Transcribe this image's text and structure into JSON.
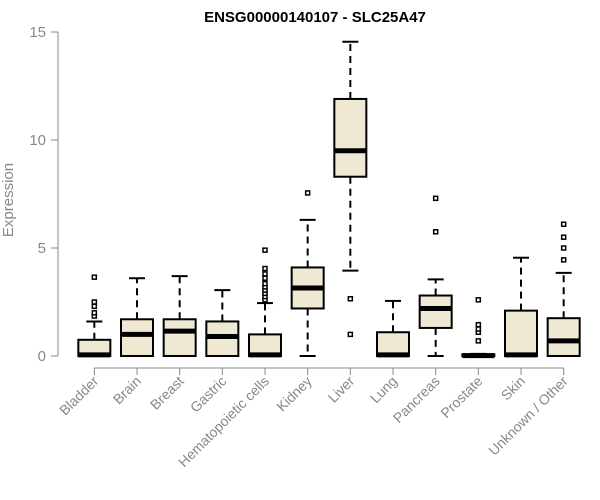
{
  "chart_data": {
    "type": "box",
    "title": "ENSG00000140107 - SLC25A47",
    "xlabel": "",
    "ylabel": "Expression",
    "ylim": [
      0,
      15
    ],
    "yticks": [
      0,
      5,
      10,
      15
    ],
    "ytick_labels": [
      "0",
      "5",
      "10",
      "15"
    ],
    "grid": false,
    "box_fill": "#efe8d2",
    "box_stroke": "#000000",
    "axis_color": "#888888",
    "categories": [
      "Bladder",
      "Brain",
      "Breast",
      "Gastric",
      "Hematopoietic cells",
      "Kidney",
      "Liver",
      "Lung",
      "Pancreas",
      "Prostate",
      "Skin",
      "Unknown / Other"
    ],
    "boxes": [
      {
        "label": "Bladder",
        "q1": 0.0,
        "median": 0.05,
        "q3": 0.75,
        "whisker_low": 0.0,
        "whisker_high": 1.6,
        "outliers": [
          1.85,
          2.0,
          2.3,
          2.5,
          3.65
        ]
      },
      {
        "label": "Brain",
        "q1": 0.0,
        "median": 1.0,
        "q3": 1.7,
        "whisker_low": 0.0,
        "whisker_high": 3.6,
        "outliers": []
      },
      {
        "label": "Breast",
        "q1": 0.0,
        "median": 1.15,
        "q3": 1.7,
        "whisker_low": 0.0,
        "whisker_high": 3.7,
        "outliers": []
      },
      {
        "label": "Gastric",
        "q1": 0.0,
        "median": 0.9,
        "q3": 1.6,
        "whisker_low": 0.0,
        "whisker_high": 3.05,
        "outliers": []
      },
      {
        "label": "Hematopoietic cells",
        "q1": 0.0,
        "median": 0.05,
        "q3": 1.0,
        "whisker_low": 0.0,
        "whisker_high": 2.45,
        "outliers": [
          2.6,
          2.75,
          2.9,
          3.05,
          3.2,
          3.35,
          3.6,
          3.8,
          4.05,
          4.9
        ]
      },
      {
        "label": "Kidney",
        "q1": 2.2,
        "median": 3.15,
        "q3": 4.1,
        "whisker_low": 0.0,
        "whisker_high": 6.3,
        "outliers": [
          7.55
        ]
      },
      {
        "label": "Liver",
        "q1": 8.3,
        "median": 9.5,
        "q3": 11.9,
        "whisker_low": 3.95,
        "whisker_high": 14.55,
        "outliers": [
          1.0,
          2.65
        ]
      },
      {
        "label": "Lung",
        "q1": 0.0,
        "median": 0.05,
        "q3": 1.1,
        "whisker_low": 0.0,
        "whisker_high": 2.55,
        "outliers": []
      },
      {
        "label": "Pancreas",
        "q1": 1.3,
        "median": 2.2,
        "q3": 2.8,
        "whisker_low": 0.0,
        "whisker_high": 3.55,
        "outliers": [
          5.75,
          7.3
        ]
      },
      {
        "label": "Prostate",
        "q1": 0.0,
        "median": 0.02,
        "q3": 0.08,
        "whisker_low": 0.0,
        "whisker_high": 0.1,
        "outliers": [
          0.7,
          1.1,
          1.25,
          1.45,
          2.6
        ]
      },
      {
        "label": "Skin",
        "q1": 0.0,
        "median": 0.05,
        "q3": 2.1,
        "whisker_low": 0.0,
        "whisker_high": 4.55,
        "outliers": []
      },
      {
        "label": "Unknown / Other",
        "q1": 0.0,
        "median": 0.7,
        "q3": 1.75,
        "whisker_low": 0.0,
        "whisker_high": 3.85,
        "outliers": [
          4.45,
          5.0,
          5.5,
          6.1
        ]
      }
    ]
  }
}
